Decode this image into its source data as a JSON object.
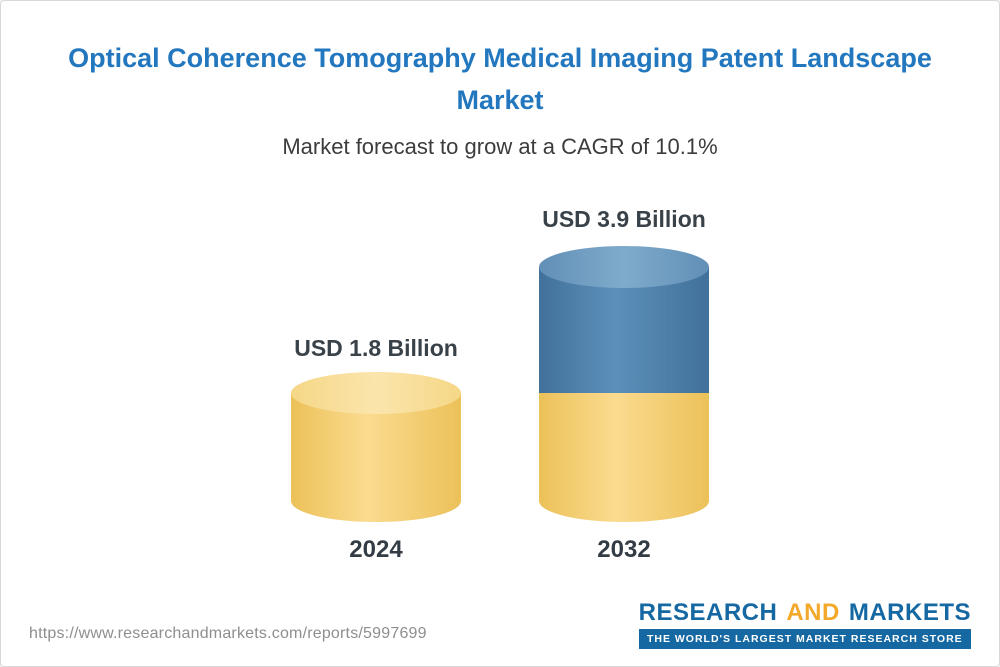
{
  "header": {
    "title_lines": [
      "Optical Coherence Tomography Medical Imaging Patent Landscape",
      "Market"
    ],
    "subtitle": "Market forecast to grow at a CAGR of 10.1%",
    "title_color": "#2277be"
  },
  "chart_data": {
    "type": "bar",
    "style": "3d-cylinder",
    "title": "Optical Coherence Tomography Medical Imaging Patent Landscape Market",
    "subtitle": "Market forecast to grow at a CAGR of 10.1%",
    "unit": "USD Billion",
    "cagr": "10.1%",
    "categories": [
      "2024",
      "2032"
    ],
    "values": [
      1.8,
      3.9
    ],
    "bars": [
      {
        "category": "2024",
        "label": "USD 1.8 Billion",
        "total": 1.8,
        "segments": [
          {
            "color": "yellow",
            "value": 1.8
          }
        ]
      },
      {
        "category": "2032",
        "label": "USD 3.9 Billion",
        "total": 3.9,
        "segments": [
          {
            "color": "yellow",
            "value": 1.8
          },
          {
            "color": "blue",
            "value": 2.1
          }
        ]
      }
    ],
    "colors": {
      "yellow": "#f6d074",
      "blue": "#4e83ae"
    },
    "grid": false,
    "legend": false
  },
  "footer": {
    "url": "https://www.researchandmarkets.com/reports/5997699",
    "logo": {
      "part1": "RESEARCH",
      "part2": "AND",
      "part3": "MARKETS",
      "tagline": "THE WORLD'S LARGEST MARKET RESEARCH STORE",
      "blue": "#1668a2",
      "orange": "#f2a92c"
    }
  }
}
